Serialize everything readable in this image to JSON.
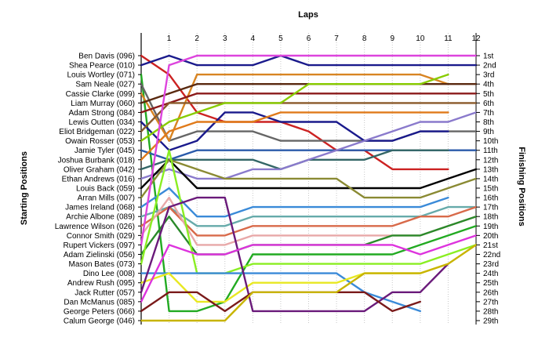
{
  "chart_data": {
    "type": "line",
    "title": "",
    "xlabel": "Laps",
    "ylabel_left": "Starting Positions",
    "ylabel_right": "Finishing Positions",
    "x": [
      0,
      1,
      2,
      3,
      4,
      5,
      6,
      7,
      8,
      9,
      10,
      11,
      12
    ],
    "x_tick_labels": [
      "1",
      "2",
      "3",
      "4",
      "5",
      "6",
      "7",
      "8",
      "9",
      "10",
      "11",
      "12"
    ],
    "xlim": [
      0,
      12
    ],
    "ylim": [
      1,
      29
    ],
    "y_inverted": true,
    "grid": "vertical",
    "starting_labels": [
      "Ben Davis (096)",
      "Shea Pearce (010)",
      "Louis Wortley (071)",
      "Sam Neale (027)",
      "Cassie Clarke (099)",
      "Liam Murray (060)",
      "Adam Strong (084)",
      "Lewis Outten (034)",
      "Eliot Bridgeman (022)",
      "Owain Rosser (053)",
      "Jamie Tyler (045)",
      "Joshua Burbank (018)",
      "Oliver Graham (042)",
      "Ethan Andrews (016)",
      "Louis Back (059)",
      "Arran Mills (007)",
      "James Ireland (068)",
      "Archie Albone (089)",
      "Lawrence Wilson (026)",
      "Connor Smith (029)",
      "Rupert Vickers (097)",
      "Adam Zielinski (056)",
      "Mason Bates (073)",
      "Dino Lee (008)",
      "Andrew Rush (095)",
      "Jack Rutter (057)",
      "Dan McManus (085)",
      "George Peters (066)",
      "Calum George (046)"
    ],
    "finishing_labels": [
      "1st",
      "2nd",
      "3rd",
      "4th",
      "5th",
      "6th",
      "7th",
      "8th",
      "9th",
      "10th",
      "11th",
      "12th",
      "13th",
      "14th",
      "15th",
      "16th",
      "17th",
      "18th",
      "19th",
      "20th",
      "21st",
      "22nd",
      "23rd",
      "24th",
      "25th",
      "26th",
      "27th",
      "28th",
      "29th"
    ],
    "series": [
      {
        "color": "#cc2222",
        "values": [
          1,
          3,
          7,
          8,
          8,
          8,
          9,
          11,
          11,
          13,
          13,
          13,
          null
        ]
      },
      {
        "color": "#1a1a8c",
        "values": [
          2,
          1,
          2,
          2,
          2,
          1,
          2,
          2,
          2,
          2,
          2,
          2,
          2
        ]
      },
      {
        "color": "#22aa22",
        "values": [
          3,
          28,
          28,
          27,
          22,
          22,
          22,
          22,
          22,
          22,
          21,
          20,
          19
        ]
      },
      {
        "color": "#666666",
        "values": [
          4,
          10,
          9,
          9,
          9,
          10,
          10,
          10,
          10,
          10,
          9,
          9,
          9
        ]
      },
      {
        "color": "#d88422",
        "values": [
          5,
          10,
          3,
          3,
          3,
          3,
          3,
          3,
          3,
          3,
          3,
          4,
          null
        ]
      },
      {
        "color": "#5a2a10",
        "values": [
          6,
          5,
          4,
          4,
          4,
          4,
          4,
          4,
          4,
          4,
          4,
          4,
          4
        ]
      },
      {
        "color": "#8b1a1a",
        "values": [
          7,
          6,
          5,
          5,
          5,
          5,
          5,
          5,
          5,
          5,
          5,
          5,
          5
        ]
      },
      {
        "color": "#1a1a8c",
        "values": [
          8,
          11,
          10,
          7,
          7,
          8,
          8,
          8,
          10,
          10,
          9,
          9,
          null
        ]
      },
      {
        "color": "#8a5a2a",
        "values": [
          9,
          6,
          6,
          6,
          6,
          6,
          6,
          6,
          6,
          6,
          6,
          6,
          6
        ]
      },
      {
        "color": "#88cc00",
        "values": [
          10,
          8,
          7,
          6,
          6,
          6,
          4,
          4,
          4,
          4,
          4,
          3,
          null
        ]
      },
      {
        "color": "#2a5aaa",
        "values": [
          11,
          12,
          11,
          11,
          11,
          11,
          11,
          11,
          11,
          11,
          11,
          11,
          11
        ]
      },
      {
        "color": "#e07a1a",
        "values": [
          12,
          9,
          8,
          8,
          8,
          7,
          7,
          7,
          7,
          7,
          7,
          7,
          null
        ]
      },
      {
        "color": "#336666",
        "values": [
          13,
          12,
          12,
          12,
          12,
          13,
          12,
          12,
          12,
          11,
          11,
          11,
          null
        ]
      },
      {
        "color": "#8a7acc",
        "values": [
          14,
          13,
          14,
          14,
          13,
          13,
          12,
          11,
          10,
          9,
          8,
          8,
          7
        ]
      },
      {
        "color": "#000000",
        "values": [
          15,
          12,
          15,
          15,
          15,
          15,
          15,
          15,
          15,
          15,
          15,
          14,
          13
        ]
      },
      {
        "color": "#8a8a33",
        "values": [
          16,
          12,
          13,
          14,
          14,
          14,
          14,
          14,
          16,
          16,
          16,
          15,
          14
        ]
      },
      {
        "color": "#3a8ad8",
        "values": [
          17,
          15,
          18,
          18,
          17,
          17,
          17,
          17,
          17,
          17,
          17,
          16,
          null
        ]
      },
      {
        "color": "#66aaaa",
        "values": [
          18,
          17,
          19,
          19,
          18,
          18,
          18,
          18,
          18,
          18,
          18,
          17,
          17
        ]
      },
      {
        "color": "#d86a4a",
        "values": [
          19,
          17,
          20,
          20,
          19,
          19,
          19,
          19,
          19,
          19,
          18,
          18,
          17
        ]
      },
      {
        "color": "#e8a8a8",
        "values": [
          20,
          16,
          21,
          21,
          20,
          20,
          20,
          20,
          20,
          20,
          20,
          19,
          18
        ]
      },
      {
        "color": "#dd44dd",
        "values": [
          21,
          2,
          1,
          1,
          1,
          1,
          1,
          1,
          1,
          1,
          1,
          1,
          1
        ]
      },
      {
        "color": "#2a8a2a",
        "values": [
          22,
          18,
          22,
          22,
          21,
          21,
          21,
          21,
          21,
          20,
          20,
          19,
          18
        ]
      },
      {
        "color": "#8aee22",
        "values": [
          23,
          11,
          24,
          24,
          23,
          23,
          23,
          23,
          23,
          23,
          23,
          22,
          21
        ]
      },
      {
        "color": "#3a8ad8",
        "values": [
          24,
          24,
          24,
          24,
          24,
          24,
          24,
          24,
          26,
          27,
          28,
          null,
          null
        ]
      },
      {
        "color": "#e8e822",
        "values": [
          25,
          24,
          27,
          27,
          25,
          25,
          25,
          25,
          24,
          24,
          24,
          23,
          null
        ]
      },
      {
        "color": "#6a1a7a",
        "values": [
          26,
          17,
          16,
          16,
          28,
          28,
          28,
          28,
          28,
          26,
          26,
          23,
          null
        ]
      },
      {
        "color": "#dd33dd",
        "values": [
          27,
          21,
          22,
          22,
          21,
          21,
          21,
          21,
          21,
          21,
          22,
          21,
          20
        ]
      },
      {
        "color": "#7a1a1a",
        "values": [
          28,
          26,
          26,
          28,
          26,
          26,
          26,
          26,
          26,
          28,
          27,
          null,
          null
        ]
      },
      {
        "color": "#c8b400",
        "values": [
          29,
          29,
          29,
          29,
          26,
          26,
          26,
          26,
          24,
          24,
          24,
          23,
          21
        ]
      }
    ]
  }
}
